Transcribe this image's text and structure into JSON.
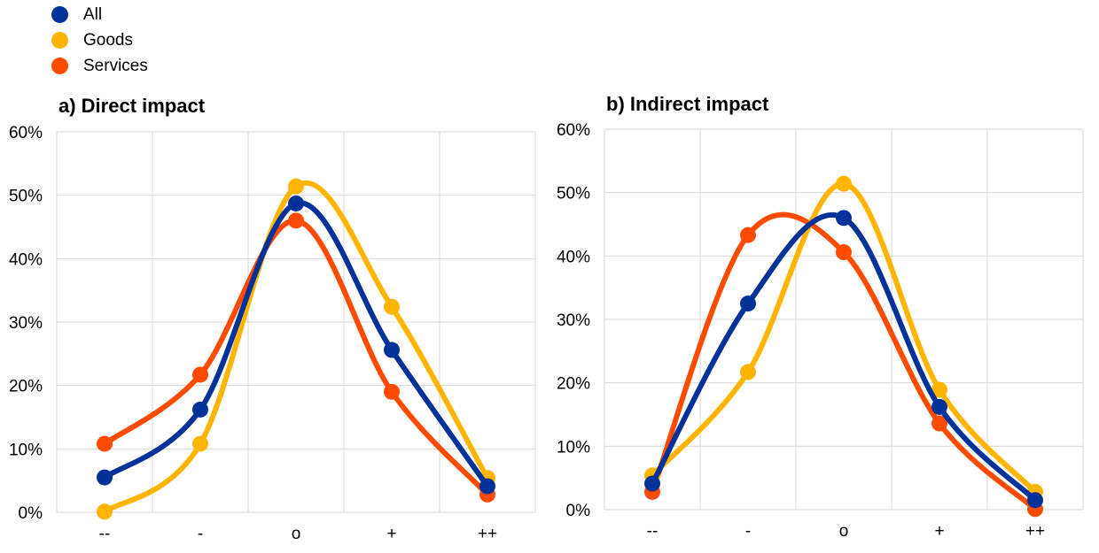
{
  "legend": [
    {
      "name": "All",
      "color": "#003299"
    },
    {
      "name": "Goods",
      "color": "#FFB400"
    },
    {
      "name": "Services",
      "color": "#FF4B00"
    }
  ],
  "chart_data": [
    {
      "type": "line",
      "title": "a) Direct impact",
      "categories": [
        "--",
        "-",
        "o",
        "+",
        "++"
      ],
      "ylim": [
        0,
        60
      ],
      "yticks": [
        "0%",
        "10%",
        "20%",
        "30%",
        "40%",
        "50%",
        "60%"
      ],
      "grid": true,
      "legend_position": "top-left",
      "series": [
        {
          "name": "Services",
          "values": [
            10.8,
            21.7,
            46.0,
            19.0,
            2.8
          ]
        },
        {
          "name": "Goods",
          "values": [
            0.1,
            10.8,
            51.4,
            32.4,
            5.4
          ]
        },
        {
          "name": "All",
          "values": [
            5.5,
            16.2,
            48.7,
            25.6,
            4.1
          ]
        }
      ]
    },
    {
      "type": "line",
      "title": "b) Indirect impact",
      "categories": [
        "--",
        "-",
        "o",
        "+",
        "++"
      ],
      "ylim": [
        0,
        60
      ],
      "yticks": [
        "0%",
        "10%",
        "20%",
        "30%",
        "40%",
        "50%",
        "60%"
      ],
      "grid": true,
      "legend_position": "top-left",
      "series": [
        {
          "name": "Services",
          "values": [
            2.8,
            43.3,
            40.6,
            13.6,
            0.1
          ]
        },
        {
          "name": "Goods",
          "values": [
            5.4,
            21.7,
            51.4,
            18.9,
            2.8
          ]
        },
        {
          "name": "All",
          "values": [
            4.1,
            32.5,
            46.0,
            16.2,
            1.5
          ]
        }
      ]
    }
  ]
}
